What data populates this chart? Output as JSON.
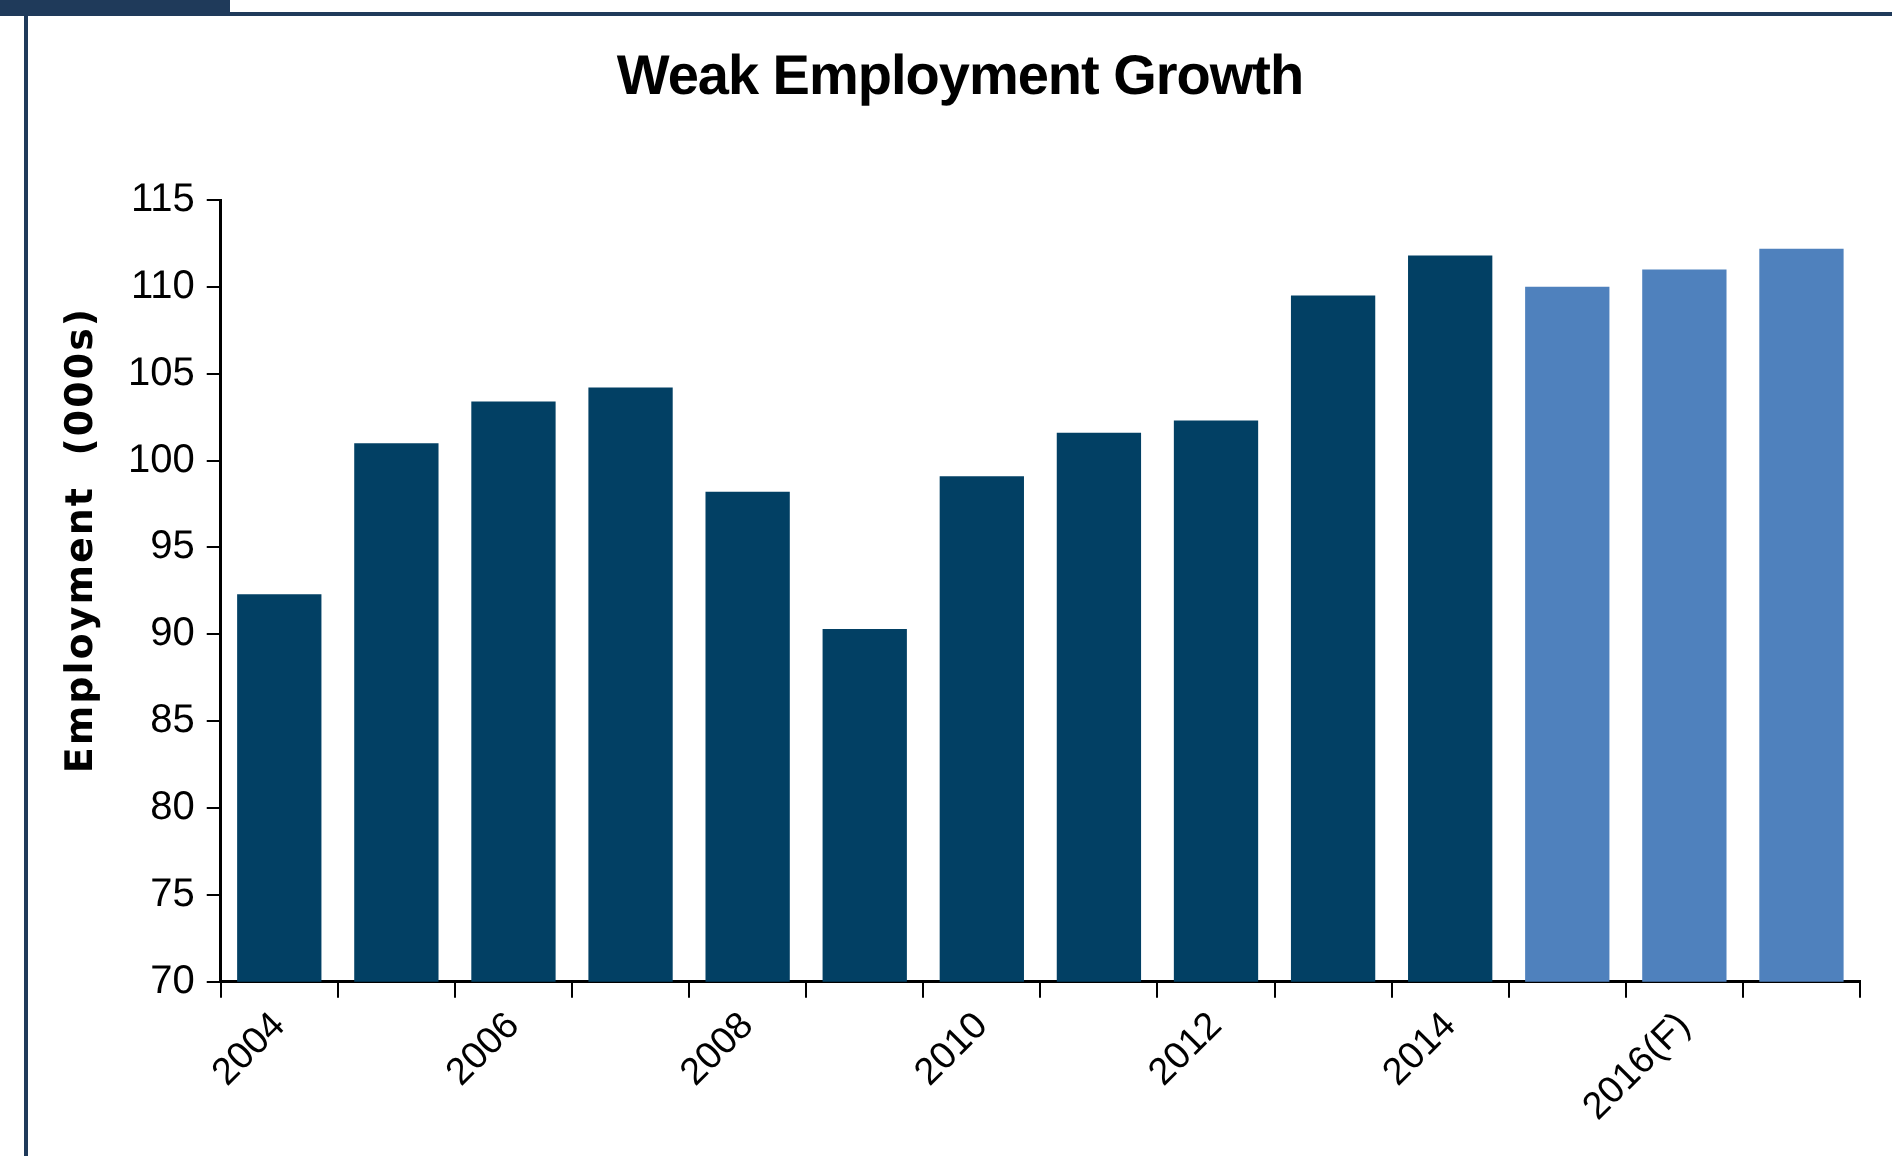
{
  "chart_data": {
    "type": "bar",
    "title": "Weak Employment Growth",
    "ylabel": "Employment  (000s)",
    "categories": [
      "2004",
      null,
      "2006",
      null,
      "2008",
      null,
      "2010",
      null,
      "2012",
      null,
      "2014",
      null,
      "2016(F)",
      null
    ],
    "values": [
      92.3,
      101.0,
      103.4,
      104.2,
      98.2,
      90.3,
      99.1,
      101.6,
      102.3,
      109.5,
      111.8,
      110.0,
      111.0,
      112.2
    ],
    "colors": [
      "#024064",
      "#024064",
      "#024064",
      "#024064",
      "#024064",
      "#024064",
      "#024064",
      "#024064",
      "#024064",
      "#024064",
      "#024064",
      "#4f81bd",
      "#4f81bd",
      "#4f81bd"
    ],
    "ylim": [
      70,
      115
    ],
    "yticks": [
      70,
      75,
      80,
      85,
      90,
      95,
      100,
      105,
      110,
      115
    ]
  }
}
